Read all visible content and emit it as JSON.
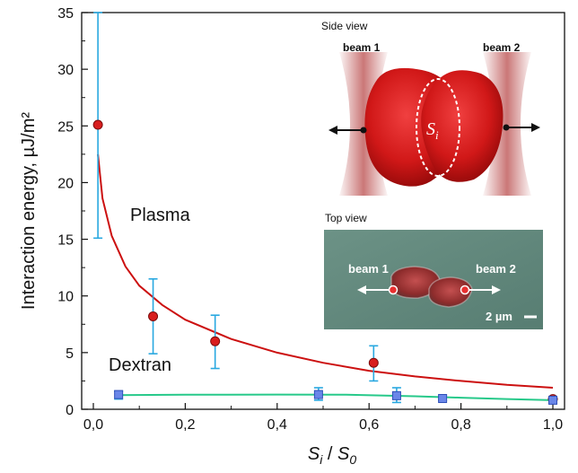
{
  "chart_data": {
    "type": "scatter",
    "xlabel_main": "S",
    "xlabel_sub1": "i",
    "xlabel_sep": " / ",
    "xlabel_sub2": "0",
    "ylabel": "Interaction energy, µJ/m²",
    "xlim": [
      0,
      1
    ],
    "ylim": [
      0,
      35
    ],
    "x_ticks": [
      "0,0",
      "0,2",
      "0,4",
      "0,6",
      "0,8",
      "1,0"
    ],
    "y_ticks": [
      "0",
      "5",
      "10",
      "15",
      "20",
      "25",
      "30",
      "35"
    ],
    "series": [
      {
        "name": "Plasma",
        "marker": "circle",
        "marker_color": "#d81e1e",
        "line_color": "#cc1010",
        "points": [
          {
            "x": 0.01,
            "y": 25.1,
            "err_low": 15.1,
            "err_high": 35.0
          },
          {
            "x": 0.13,
            "y": 8.2,
            "err_low": 4.9,
            "err_high": 11.5
          },
          {
            "x": 0.265,
            "y": 6.0,
            "err_low": 3.6,
            "err_high": 8.3
          },
          {
            "x": 0.61,
            "y": 4.1,
            "err_low": 2.5,
            "err_high": 5.6
          },
          {
            "x": 1.0,
            "y": 0.9,
            "err_low": 0.7,
            "err_high": 1.1
          }
        ],
        "fit": [
          [
            0.01,
            22.5
          ],
          [
            0.02,
            18.6
          ],
          [
            0.04,
            15.3
          ],
          [
            0.07,
            12.6
          ],
          [
            0.1,
            10.9
          ],
          [
            0.15,
            9.2
          ],
          [
            0.2,
            7.9
          ],
          [
            0.3,
            6.2
          ],
          [
            0.4,
            5.0
          ],
          [
            0.5,
            4.1
          ],
          [
            0.6,
            3.4
          ],
          [
            0.7,
            2.9
          ],
          [
            0.8,
            2.5
          ],
          [
            0.9,
            2.15
          ],
          [
            1.0,
            1.9
          ]
        ]
      },
      {
        "name": "Dextran",
        "marker": "square",
        "marker_color": "#6a86e8",
        "line_color": "#27c98a",
        "points": [
          {
            "x": 0.055,
            "y": 1.3,
            "err_low": 0.9,
            "err_high": 1.6
          },
          {
            "x": 0.49,
            "y": 1.3,
            "err_low": 0.8,
            "err_high": 1.9
          },
          {
            "x": 0.66,
            "y": 1.2,
            "err_low": 0.6,
            "err_high": 1.9
          },
          {
            "x": 0.76,
            "y": 0.95,
            "err_low": 0.8,
            "err_high": 1.1
          },
          {
            "x": 1.0,
            "y": 0.8,
            "err_low": 0.6,
            "err_high": 1.0
          }
        ],
        "fit": [
          [
            0.05,
            1.25
          ],
          [
            0.2,
            1.28
          ],
          [
            0.4,
            1.3
          ],
          [
            0.55,
            1.28
          ],
          [
            0.7,
            1.15
          ],
          [
            0.8,
            1.02
          ],
          [
            0.9,
            0.9
          ],
          [
            1.0,
            0.8
          ]
        ]
      }
    ],
    "error_bar_color": "#29a8e0"
  },
  "inset_side": {
    "title": "Side view",
    "beam1": "beam 1",
    "beam2": "beam 2",
    "area_label": "S",
    "area_sub": "i"
  },
  "inset_top": {
    "title": "Top view",
    "beam1": "beam 1",
    "beam2": "beam 2",
    "scale": "2 µm"
  }
}
